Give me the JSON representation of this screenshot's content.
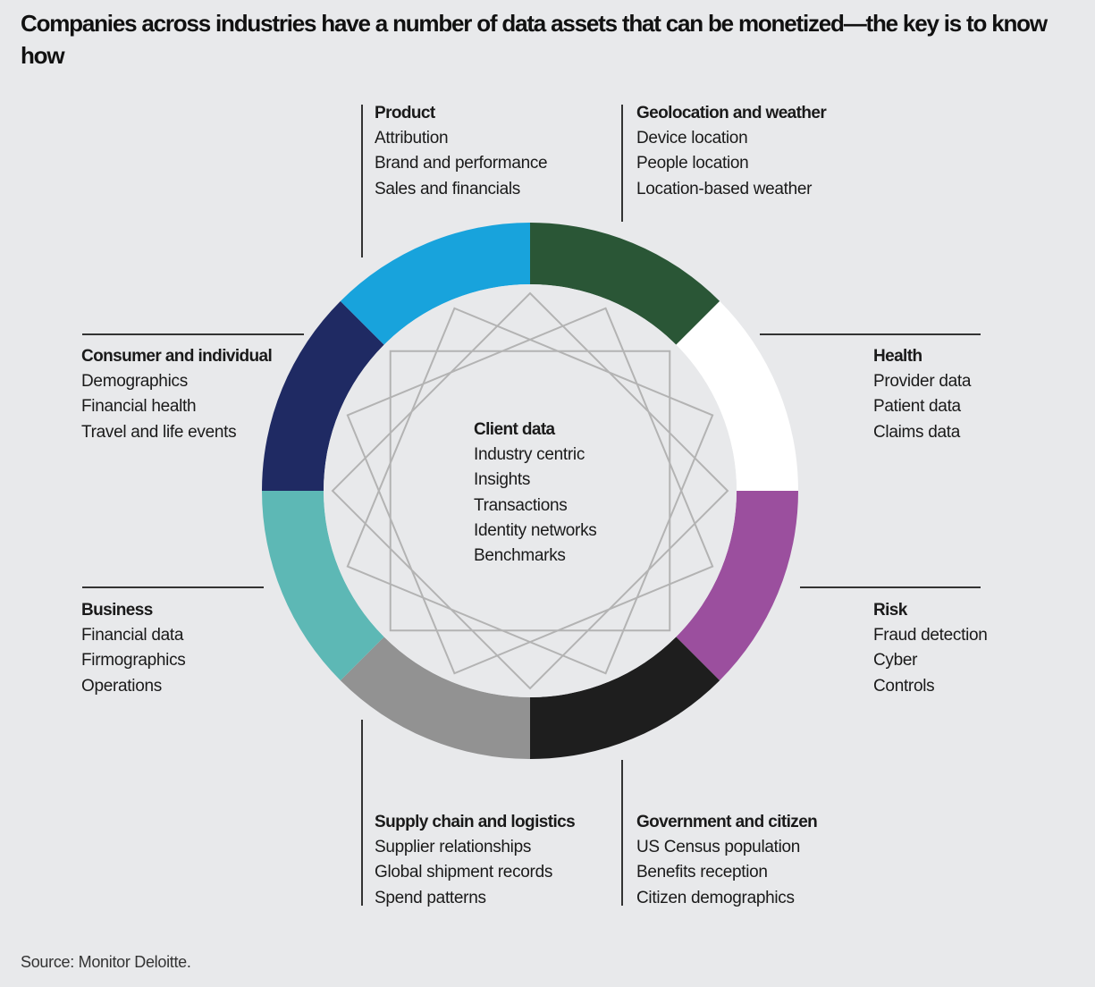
{
  "title": "Companies across industries have a number of data assets that can be monetized—the key is to know how",
  "center": {
    "heading": "Client data",
    "items": [
      "Industry centric",
      "Insights",
      "Transactions",
      "Identity networks",
      "Benchmarks"
    ]
  },
  "segments": [
    {
      "name": "Geolocation and weather",
      "color": "#2a5636",
      "items": [
        "Device location",
        "People location",
        "Location-based weather"
      ]
    },
    {
      "name": "Health",
      "color": "#ffffff",
      "items": [
        "Provider data",
        "Patient data",
        "Claims data"
      ]
    },
    {
      "name": "Risk",
      "color": "#9b4f9e",
      "items": [
        "Fraud detection",
        "Cyber",
        "Controls"
      ]
    },
    {
      "name": "Government and citizen",
      "color": "#1e1e1e",
      "items": [
        "US Census population",
        "Benefits reception",
        "Citizen demographics"
      ]
    },
    {
      "name": "Supply chain and logistics",
      "color": "#929292",
      "items": [
        "Supplier relationships",
        "Global shipment records",
        "Spend patterns"
      ]
    },
    {
      "name": "Business",
      "color": "#5db8b5",
      "items": [
        "Financial data",
        "Firmographics",
        "Operations"
      ]
    },
    {
      "name": "Consumer and individual",
      "color": "#1f2a63",
      "items": [
        "Demographics",
        "Financial health",
        "Travel and life events"
      ]
    },
    {
      "name": "Product",
      "color": "#18a3dc",
      "items": [
        "Attribution",
        "Brand and performance",
        "Sales and financials"
      ]
    }
  ],
  "source": "Source: Monitor Deloitte."
}
